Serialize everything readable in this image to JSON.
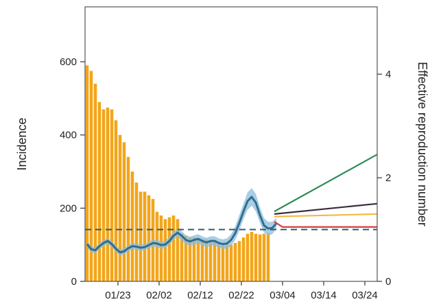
{
  "chart_data": {
    "type": "bar",
    "ylabel": "Incidence",
    "y2label": "Effective reproduction number",
    "ylim": [
      0,
      750
    ],
    "y2lim": [
      0,
      5.3
    ],
    "y_ticks": [
      0,
      200,
      400,
      600
    ],
    "y2_ticks": [
      0,
      2,
      4
    ],
    "x_tick_labels": [
      "01/23",
      "02/02",
      "02/12",
      "02/22",
      "03/04",
      "03/14",
      "03/24"
    ],
    "x_tick_positions": [
      8,
      18,
      28,
      38,
      48,
      58,
      68
    ],
    "xlim": [
      0,
      71
    ],
    "grid": false,
    "bar_color": "#f2a51a",
    "observed_end": 45,
    "incidence": [
      590,
      575,
      540,
      490,
      470,
      475,
      470,
      440,
      400,
      380,
      340,
      300,
      270,
      245,
      245,
      235,
      225,
      190,
      180,
      170,
      175,
      180,
      170,
      130,
      125,
      120,
      120,
      118,
      115,
      115,
      112,
      110,
      108,
      105,
      100,
      100,
      105,
      110,
      120,
      130,
      135,
      130,
      128,
      130,
      132
    ],
    "rt_estimate": {
      "color": "#2f6e8e",
      "band_color": "#8cbcdc",
      "x": [
        0,
        1,
        2,
        3,
        4,
        5,
        6,
        7,
        8,
        9,
        10,
        11,
        12,
        13,
        14,
        15,
        16,
        17,
        18,
        19,
        20,
        21,
        22,
        23,
        24,
        25,
        26,
        27,
        28,
        29,
        30,
        31,
        32,
        33,
        34,
        35,
        36,
        37,
        38,
        39,
        40,
        41,
        42,
        43,
        44,
        45,
        46
      ],
      "values": [
        0.72,
        0.62,
        0.6,
        0.68,
        0.74,
        0.78,
        0.72,
        0.63,
        0.56,
        0.58,
        0.64,
        0.68,
        0.67,
        0.65,
        0.66,
        0.7,
        0.74,
        0.73,
        0.7,
        0.71,
        0.78,
        0.88,
        0.94,
        0.88,
        0.8,
        0.77,
        0.8,
        0.82,
        0.78,
        0.75,
        0.78,
        0.78,
        0.74,
        0.72,
        0.73,
        0.8,
        0.93,
        1.13,
        1.35,
        1.55,
        1.63,
        1.52,
        1.28,
        1.08,
        1.02,
        1.03,
        1.12
      ],
      "upper": [
        0.78,
        0.68,
        0.66,
        0.74,
        0.8,
        0.84,
        0.78,
        0.69,
        0.62,
        0.64,
        0.7,
        0.74,
        0.73,
        0.71,
        0.72,
        0.76,
        0.81,
        0.8,
        0.77,
        0.78,
        0.86,
        0.96,
        1.02,
        0.97,
        0.89,
        0.86,
        0.89,
        0.91,
        0.87,
        0.84,
        0.87,
        0.87,
        0.83,
        0.81,
        0.83,
        0.91,
        1.06,
        1.28,
        1.5,
        1.72,
        1.8,
        1.69,
        1.43,
        1.22,
        1.15,
        1.15,
        1.22
      ],
      "lower": [
        0.66,
        0.56,
        0.54,
        0.62,
        0.68,
        0.72,
        0.66,
        0.57,
        0.5,
        0.52,
        0.58,
        0.62,
        0.61,
        0.59,
        0.6,
        0.64,
        0.67,
        0.66,
        0.63,
        0.64,
        0.7,
        0.8,
        0.86,
        0.79,
        0.71,
        0.68,
        0.71,
        0.73,
        0.69,
        0.66,
        0.69,
        0.69,
        0.65,
        0.63,
        0.63,
        0.69,
        0.8,
        0.98,
        1.2,
        1.38,
        1.46,
        1.35,
        1.13,
        0.94,
        0.89,
        0.91,
        1.02
      ]
    },
    "threshold": {
      "value": 1.0,
      "color": "#2f5a6e",
      "style": "dashed",
      "x_range": [
        0,
        71
      ]
    },
    "series": [
      {
        "color": "#2e8b57",
        "x": [
          46,
          71
        ],
        "values": [
          1.35,
          2.45
        ]
      },
      {
        "color": "#3a2b3e",
        "x": [
          46,
          71
        ],
        "values": [
          1.3,
          1.5
        ]
      },
      {
        "color": "#f5b942",
        "x": [
          46,
          71
        ],
        "values": [
          1.25,
          1.3
        ]
      },
      {
        "color": "#d63b3b",
        "x": [
          46,
          48,
          71
        ],
        "values": [
          1.15,
          1.05,
          1.05
        ]
      }
    ],
    "partial_axis_text": "———"
  }
}
